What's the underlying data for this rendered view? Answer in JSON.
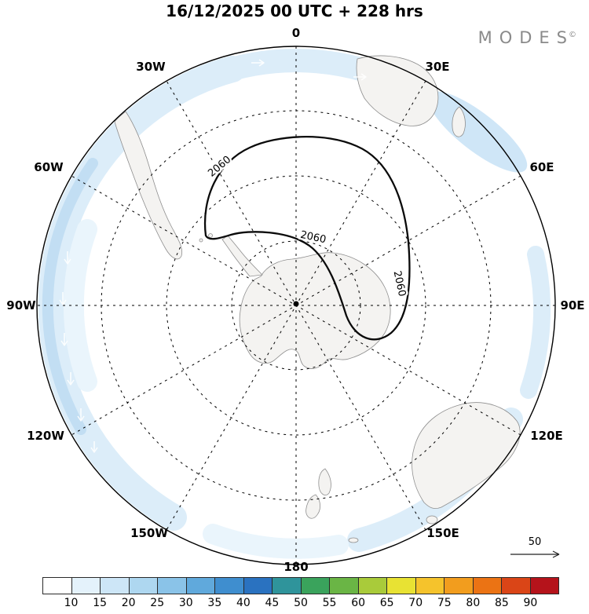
{
  "header": {
    "title": "16/12/2025  00 UTC  + 228 hrs",
    "logo_text": "MODES",
    "logo_mark": "©"
  },
  "map": {
    "meridian_labels": [
      "0",
      "30E",
      "60E",
      "90E",
      "120E",
      "150E",
      "180",
      "150W",
      "120W",
      "90W",
      "60W",
      "30W"
    ],
    "contour_label": "2060",
    "land_color": "#f4f3f1",
    "shading": {
      "light": "#dcedf9",
      "mid": "#cfe6f7",
      "deep": "#c2def3",
      "wash": "#eaf5fc"
    }
  },
  "wind_reference": {
    "label": "50"
  },
  "colorbar": {
    "labels": [
      "10",
      "15",
      "20",
      "25",
      "30",
      "35",
      "40",
      "45",
      "50",
      "55",
      "60",
      "65",
      "70",
      "75",
      "80",
      "85",
      "90"
    ],
    "colors": [
      "#ffffff",
      "#e4f2fb",
      "#cde6f7",
      "#aed7f0",
      "#8ac3e8",
      "#60a9dc",
      "#3f8ecf",
      "#2a72c0",
      "#2f949b",
      "#3aa35c",
      "#6ab545",
      "#a9cb3a",
      "#e8e233",
      "#f5c32c",
      "#f29d1e",
      "#eb7314",
      "#da4517",
      "#b5131b"
    ]
  }
}
